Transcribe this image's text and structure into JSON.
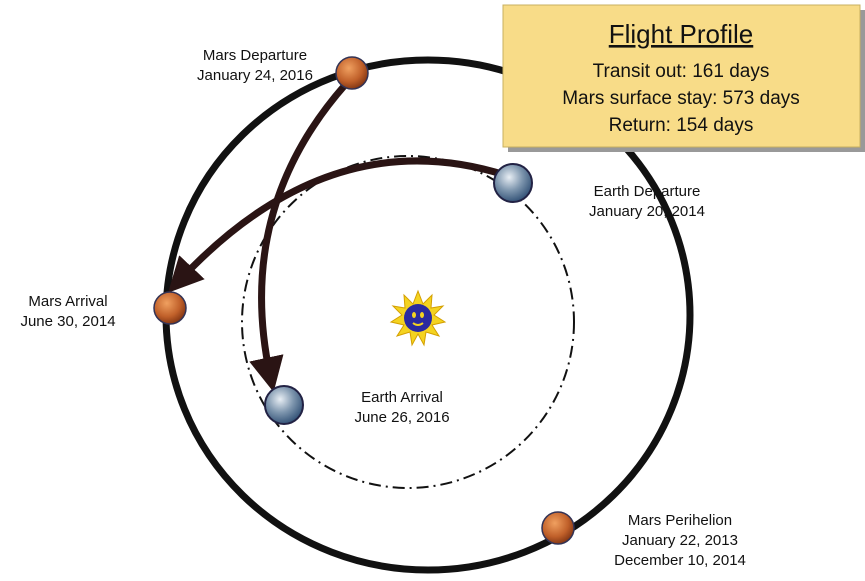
{
  "flight_profile": {
    "title": "Flight Profile",
    "lines": [
      "Transit out: 161 days",
      "Mars surface stay: 573 days",
      "Return: 154 days"
    ]
  },
  "labels": [
    {
      "lines": [
        "Mars Departure",
        "January 24, 2016"
      ]
    },
    {
      "lines": [
        "Earth Departure",
        "January 20, 2014"
      ]
    },
    {
      "lines": [
        "Mars Arrival",
        "June 30, 2014"
      ]
    },
    {
      "lines": [
        "Earth Arrival",
        "June 26, 2016"
      ]
    },
    {
      "lines": [
        "Mars Perihelion",
        "January 22, 2013",
        "December 10, 2014"
      ]
    }
  ]
}
